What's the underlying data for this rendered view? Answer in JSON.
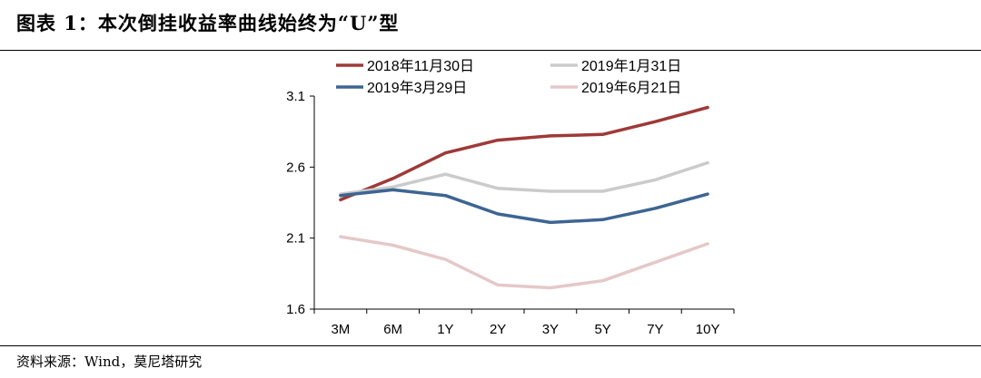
{
  "header": {
    "title": "图表 1：本次倒挂收益率曲线始终为“U”型"
  },
  "footer": {
    "source": "资料来源：Wind，莫尼塔研究"
  },
  "chart_data": {
    "type": "line",
    "title": "",
    "xlabel": "",
    "ylabel": "",
    "categories": [
      "3M",
      "6M",
      "1Y",
      "2Y",
      "3Y",
      "5Y",
      "7Y",
      "10Y"
    ],
    "ylim": [
      1.6,
      3.1
    ],
    "yticks": [
      "3.1",
      "2.6",
      "2.1",
      "1.6"
    ],
    "grid": false,
    "legend_position": "top",
    "series": [
      {
        "name": "2018年11月30日",
        "color": "#9e3a38",
        "values": [
          2.37,
          2.52,
          2.7,
          2.79,
          2.82,
          2.83,
          2.92,
          3.02
        ]
      },
      {
        "name": "2019年1月31日",
        "color": "#cbcbcb",
        "values": [
          2.41,
          2.46,
          2.55,
          2.45,
          2.43,
          2.43,
          2.51,
          2.63
        ]
      },
      {
        "name": "2019年3月29日",
        "color": "#3d6592",
        "values": [
          2.4,
          2.44,
          2.4,
          2.27,
          2.21,
          2.23,
          2.31,
          2.41
        ]
      },
      {
        "name": "2019年6月21日",
        "color": "#e5c8c8",
        "values": [
          2.11,
          2.05,
          1.95,
          1.77,
          1.75,
          1.8,
          1.93,
          2.06
        ]
      }
    ]
  }
}
